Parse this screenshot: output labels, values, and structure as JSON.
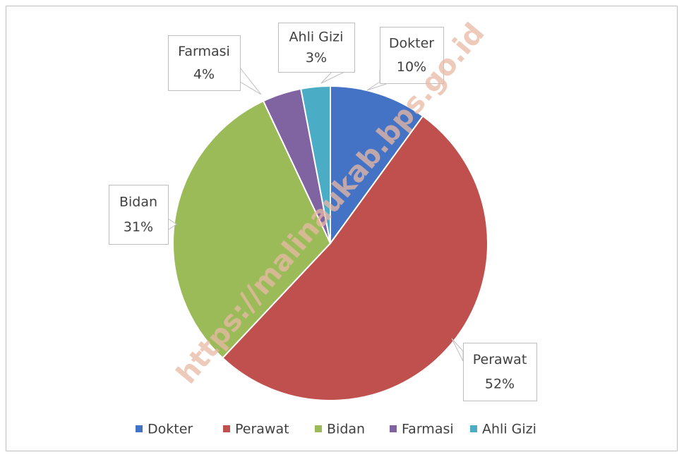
{
  "chart_data": {
    "type": "pie",
    "categories": [
      "Dokter",
      "Perawat",
      "Bidan",
      "Farmasi",
      "Ahli Gizi"
    ],
    "values": [
      10,
      52,
      31,
      4,
      3
    ],
    "value_labels": [
      "10%",
      "52%",
      "31%",
      "4%",
      "3%"
    ],
    "colors": [
      "#4472c4",
      "#c0504d",
      "#9bbb59",
      "#8064a2",
      "#4bacc6"
    ],
    "legend": "bottom",
    "watermark": "https://malinaukab.bps.go.id"
  }
}
